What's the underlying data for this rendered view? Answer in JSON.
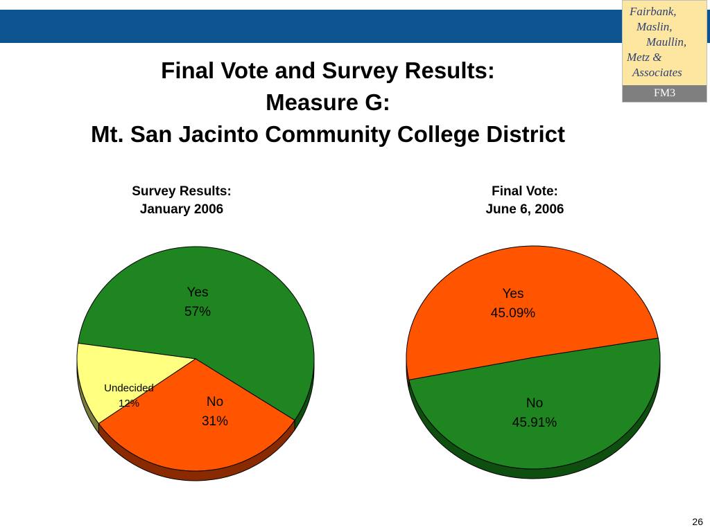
{
  "header": {
    "title_lines": [
      "Final Vote and Survey Results:",
      "Measure G:",
      "Mt. San Jacinto Community College District"
    ]
  },
  "logo": {
    "lines": [
      "Fairbank,",
      "Maslin,",
      "Maullin,",
      "Metz &",
      "Associates"
    ],
    "band": "FM3"
  },
  "footer": {
    "page_number": "26"
  },
  "colors": {
    "top_bar": "#0c5390",
    "yes": "#1e8520",
    "no": "#ff5500",
    "undecided": "#ffff80"
  },
  "chart_data": [
    {
      "type": "pie",
      "title_lines": [
        "Survey Results:",
        "January 2006"
      ],
      "slices": [
        {
          "label": "Yes",
          "value": 57,
          "display": "57%",
          "color": "#1e8520",
          "side": "#0e4f10"
        },
        {
          "label": "No",
          "value": 31,
          "display": "31%",
          "color": "#ff5500",
          "side": "#8a2a00"
        },
        {
          "label": "Undecided",
          "value": 12,
          "display": "12%",
          "color": "#ffff80",
          "side": "#7c7c3a"
        }
      ]
    },
    {
      "type": "pie",
      "title_lines": [
        "Final Vote:",
        "June 6, 2006"
      ],
      "slices": [
        {
          "label": "Yes",
          "value": 45.09,
          "display": "45.09%",
          "color": "#1e8520",
          "side": "#0e4f10"
        },
        {
          "label": "No",
          "value": 45.91,
          "display": "45.91%",
          "color": "#ff5500",
          "side": "#8a2a00"
        }
      ]
    }
  ]
}
